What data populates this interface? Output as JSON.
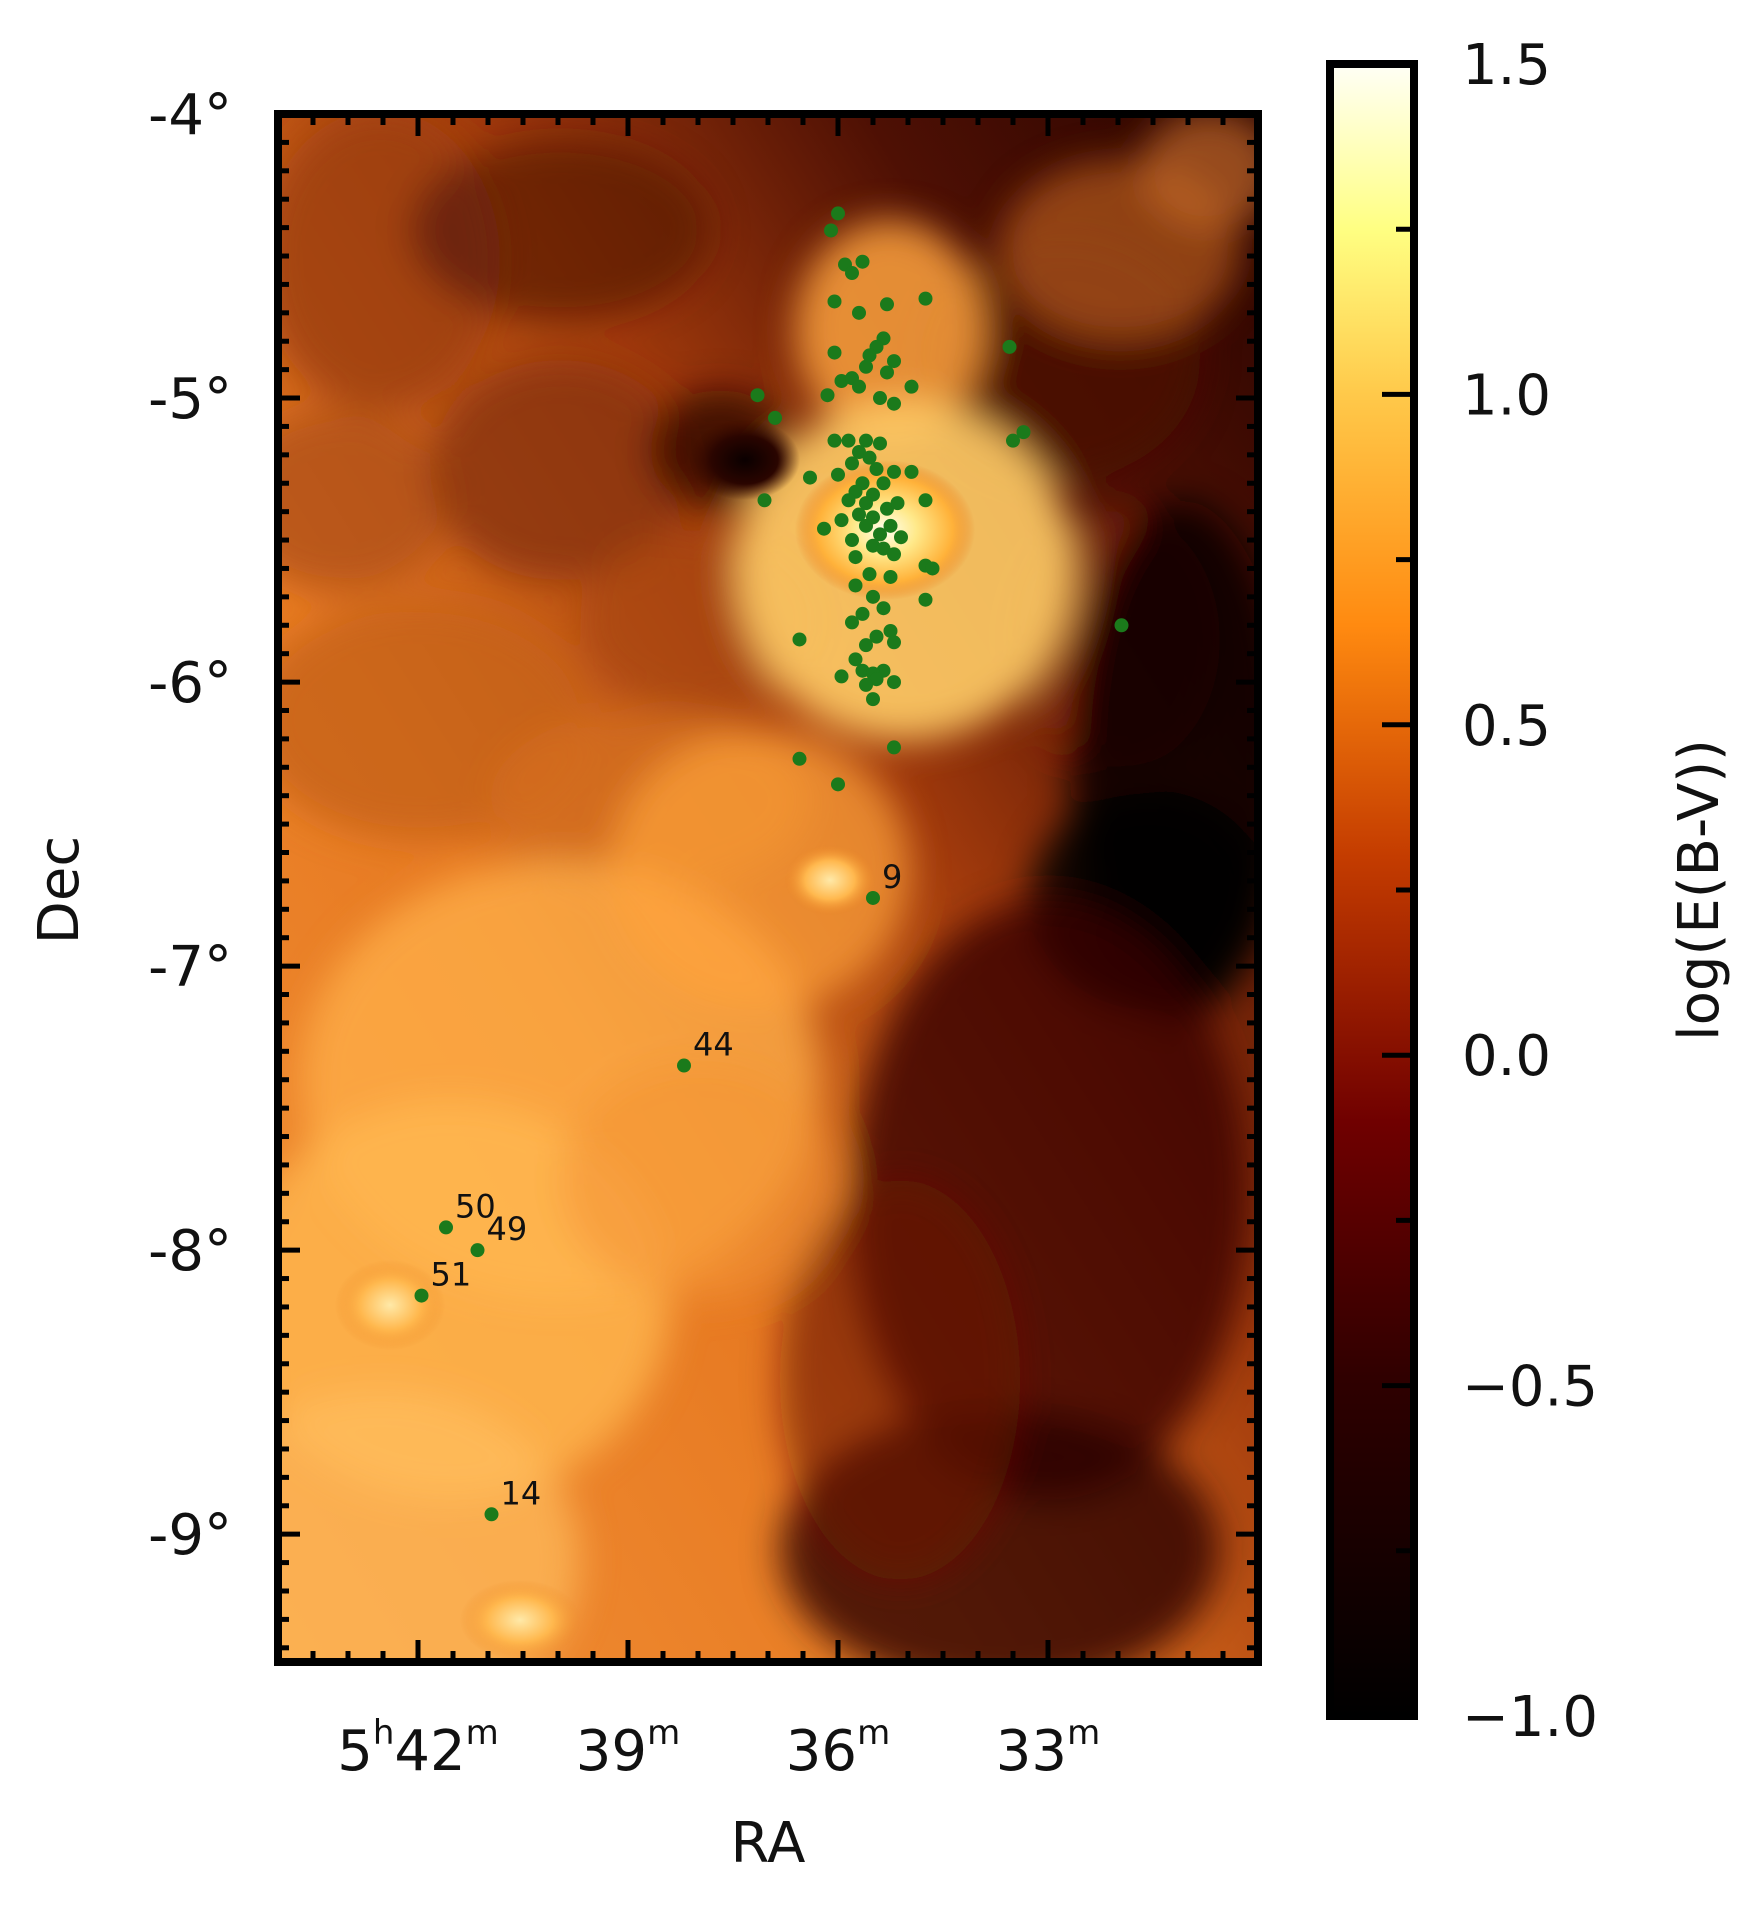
{
  "chart_data": {
    "type": "scatter",
    "background": "extinction map log(E(B-V))",
    "xlabel": "RA",
    "ylabel": "Dec",
    "xlim_minutes": [
      44.0,
      30.0
    ],
    "ylim_deg": [
      -9.45,
      -4.0
    ],
    "x_ticks": [
      {
        "value": 42,
        "h": "5",
        "m": "42"
      },
      {
        "value": 39,
        "h": "",
        "m": "39"
      },
      {
        "value": 36,
        "h": "",
        "m": "36"
      },
      {
        "value": 33,
        "h": "",
        "m": "33"
      }
    ],
    "y_ticks": [
      {
        "value": -4,
        "label": "-4°"
      },
      {
        "value": -5,
        "label": "-5°"
      },
      {
        "value": -6,
        "label": "-6°"
      },
      {
        "value": -7,
        "label": "-7°"
      },
      {
        "value": -8,
        "label": "-8°"
      },
      {
        "value": -9,
        "label": "-9°"
      }
    ],
    "colorbar": {
      "label": "log(E(B-V))",
      "range": [
        -1.0,
        1.5
      ],
      "ticks": [
        {
          "value": 1.5,
          "label": "1.5"
        },
        {
          "value": 1.0,
          "label": "1.0"
        },
        {
          "value": 0.5,
          "label": "0.5"
        },
        {
          "value": 0.0,
          "label": "0.0"
        },
        {
          "value": -0.5,
          "label": "−0.5"
        },
        {
          "value": -1.0,
          "label": "−1.0"
        }
      ]
    },
    "point_color": "#1b7a1b",
    "labeled_points": [
      {
        "ra": 35.5,
        "dec": -6.76,
        "label": "9"
      },
      {
        "ra": 38.2,
        "dec": -7.35,
        "label": "44"
      },
      {
        "ra": 41.6,
        "dec": -7.92,
        "label": "50"
      },
      {
        "ra": 41.15,
        "dec": -8.0,
        "label": "49"
      },
      {
        "ra": 41.95,
        "dec": -8.16,
        "label": "51"
      },
      {
        "ra": 40.95,
        "dec": -8.93,
        "label": "14"
      }
    ],
    "points": [
      [
        36.0,
        -4.35
      ],
      [
        36.1,
        -4.41
      ],
      [
        35.9,
        -4.53
      ],
      [
        35.65,
        -4.52
      ],
      [
        35.8,
        -4.56
      ],
      [
        34.75,
        -4.65
      ],
      [
        36.05,
        -4.66
      ],
      [
        35.3,
        -4.67
      ],
      [
        35.7,
        -4.7
      ],
      [
        33.55,
        -4.82
      ],
      [
        35.35,
        -4.79
      ],
      [
        35.45,
        -4.82
      ],
      [
        36.05,
        -4.84
      ],
      [
        35.55,
        -4.85
      ],
      [
        35.2,
        -4.87
      ],
      [
        35.6,
        -4.89
      ],
      [
        35.95,
        -4.94
      ],
      [
        35.3,
        -4.91
      ],
      [
        35.8,
        -4.93
      ],
      [
        34.95,
        -4.96
      ],
      [
        36.15,
        -4.99
      ],
      [
        35.7,
        -4.96
      ],
      [
        35.4,
        -5.0
      ],
      [
        35.2,
        -5.02
      ],
      [
        37.15,
        -4.99
      ],
      [
        36.9,
        -5.07
      ],
      [
        33.35,
        -5.12
      ],
      [
        33.5,
        -5.15
      ],
      [
        35.85,
        -5.15
      ],
      [
        36.05,
        -5.15
      ],
      [
        35.6,
        -5.15
      ],
      [
        35.4,
        -5.16
      ],
      [
        35.7,
        -5.19
      ],
      [
        35.8,
        -5.23
      ],
      [
        35.55,
        -5.21
      ],
      [
        35.45,
        -5.25
      ],
      [
        35.2,
        -5.26
      ],
      [
        36.0,
        -5.27
      ],
      [
        35.65,
        -5.3
      ],
      [
        35.75,
        -5.33
      ],
      [
        35.5,
        -5.34
      ],
      [
        35.35,
        -5.3
      ],
      [
        34.95,
        -5.26
      ],
      [
        36.4,
        -5.28
      ],
      [
        35.6,
        -5.37
      ],
      [
        35.85,
        -5.36
      ],
      [
        35.7,
        -5.41
      ],
      [
        35.3,
        -5.39
      ],
      [
        35.5,
        -5.42
      ],
      [
        35.15,
        -5.37
      ],
      [
        37.05,
        -5.36
      ],
      [
        35.95,
        -5.43
      ],
      [
        34.75,
        -5.36
      ],
      [
        35.6,
        -5.45
      ],
      [
        35.25,
        -5.45
      ],
      [
        36.2,
        -5.46
      ],
      [
        35.4,
        -5.48
      ],
      [
        35.8,
        -5.5
      ],
      [
        35.1,
        -5.49
      ],
      [
        35.5,
        -5.52
      ],
      [
        35.35,
        -5.53
      ],
      [
        35.75,
        -5.56
      ],
      [
        35.2,
        -5.55
      ],
      [
        34.75,
        -5.59
      ],
      [
        34.65,
        -5.6
      ],
      [
        35.55,
        -5.62
      ],
      [
        35.25,
        -5.63
      ],
      [
        35.75,
        -5.66
      ],
      [
        35.5,
        -5.7
      ],
      [
        34.75,
        -5.71
      ],
      [
        35.35,
        -5.74
      ],
      [
        35.65,
        -5.76
      ],
      [
        35.8,
        -5.79
      ],
      [
        31.95,
        -5.8
      ],
      [
        35.25,
        -5.82
      ],
      [
        35.45,
        -5.84
      ],
      [
        35.2,
        -5.86
      ],
      [
        36.55,
        -5.85
      ],
      [
        35.6,
        -5.87
      ],
      [
        35.75,
        -5.92
      ],
      [
        35.35,
        -5.96
      ],
      [
        35.65,
        -5.96
      ],
      [
        35.5,
        -5.97
      ],
      [
        35.45,
        -5.99
      ],
      [
        35.95,
        -5.98
      ],
      [
        35.2,
        -6.0
      ],
      [
        35.6,
        -6.01
      ],
      [
        35.5,
        -6.06
      ],
      [
        35.2,
        -6.23
      ],
      [
        36.55,
        -6.27
      ],
      [
        36.0,
        -6.36
      ]
    ]
  }
}
